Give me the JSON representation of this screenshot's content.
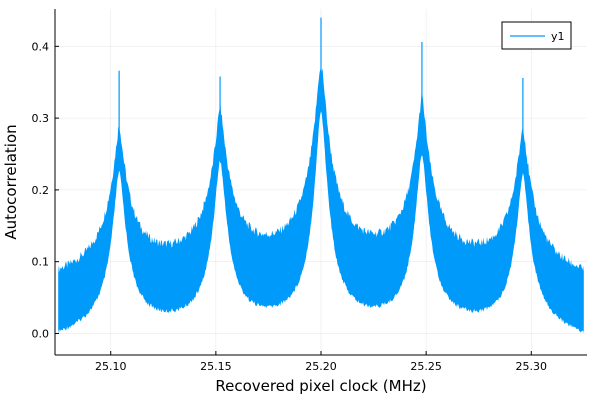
{
  "chart_data": {
    "type": "line",
    "title": "",
    "xlabel": "Recovered pixel clock (MHz)",
    "ylabel": "Autocorrelation",
    "xlim": [
      25.0735,
      25.3265
    ],
    "ylim": [
      -0.03,
      0.452
    ],
    "xticks": [
      25.1,
      25.15,
      25.2,
      25.25,
      25.3
    ],
    "xtick_labels": [
      "25.10",
      "25.15",
      "25.20",
      "25.25",
      "25.30"
    ],
    "yticks": [
      0.0,
      0.1,
      0.2,
      0.3,
      0.4
    ],
    "ytick_labels": [
      "0.0",
      "0.1",
      "0.2",
      "0.3",
      "0.4"
    ],
    "grid": true,
    "legend_position": "top-right",
    "series": [
      {
        "name": "y1",
        "color": "#009AFA",
        "x_range": [
          25.075,
          25.325
        ],
        "peaks": [
          {
            "x": 25.104,
            "upper_envelope": 0.26,
            "lower_envelope": 0.22,
            "spike": 0.366
          },
          {
            "x": 25.152,
            "upper_envelope": 0.275,
            "lower_envelope": 0.23,
            "spike": 0.358
          },
          {
            "x": 25.2,
            "upper_envelope": 0.345,
            "lower_envelope": 0.3,
            "spike": 0.44
          },
          {
            "x": 25.248,
            "upper_envelope": 0.29,
            "lower_envelope": 0.24,
            "spike": 0.406
          },
          {
            "x": 25.296,
            "upper_envelope": 0.258,
            "lower_envelope": 0.215,
            "spike": 0.356
          }
        ],
        "valley_upper_envelope": 0.045,
        "valley_lower_envelope": 0.0,
        "edge_lower_envelope": -0.01
      }
    ]
  }
}
